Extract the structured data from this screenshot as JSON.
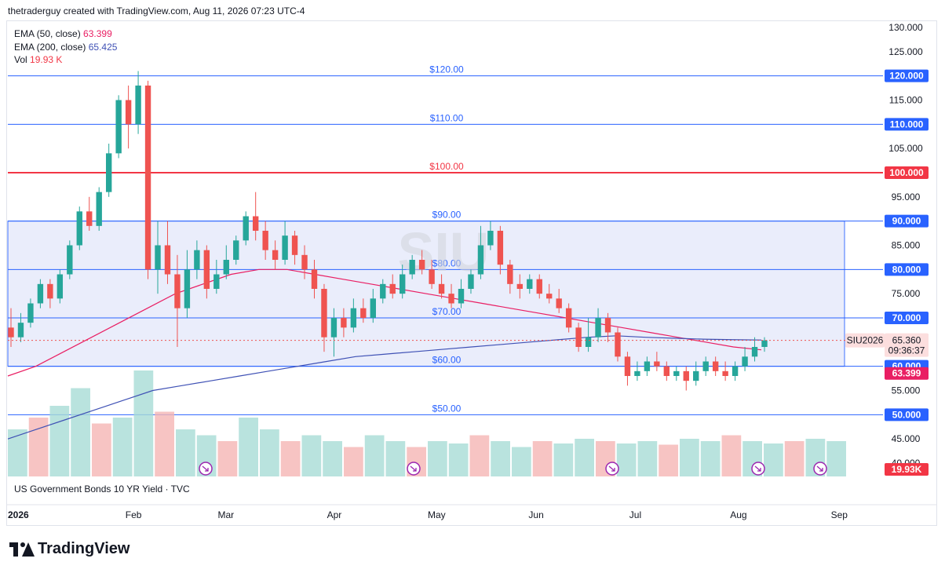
{
  "header": {
    "text": "thetraderguy created with TradingView.com, Aug 11, 2026 07:23 UTC-4"
  },
  "legend": {
    "ema50_label": "EMA (50, close)",
    "ema50_value": "63.399",
    "ema200_label": "EMA (200, close)",
    "ema200_value": "65.425",
    "vol_label": "Vol",
    "vol_value": "19.93 K"
  },
  "symbol_title": "US Government Bonds 10 YR Yield · TVC",
  "watermark": "SIU",
  "logo_text": "TradingView",
  "colors": {
    "up": "#26a69a",
    "down": "#ef5350",
    "ema50": "#e91e63",
    "ema200": "#3f51b5",
    "level_line": "#2962ff",
    "red_level": "#f23645",
    "zone_fill": "#e8ecfb"
  },
  "chart_data": {
    "type": "candlestick",
    "ylim": [
      40,
      130
    ],
    "y_ticks": [
      "130.000",
      "125.000",
      "115.000",
      "105.000",
      "95.000",
      "85.000",
      "75.000",
      "55.000",
      "45.000",
      "40.000"
    ],
    "x_labels": [
      "2026",
      "Feb",
      "Mar",
      "Apr",
      "May",
      "Jun",
      "Jul",
      "Aug",
      "Sep"
    ],
    "horizontal_levels": [
      {
        "value": 120,
        "chart_label": "$120.00",
        "axis_label": "120.000",
        "color": "#2962ff"
      },
      {
        "value": 110,
        "chart_label": "$110.00",
        "axis_label": "110.000",
        "color": "#2962ff"
      },
      {
        "value": 100,
        "chart_label": "$100.00",
        "axis_label": "100.000",
        "color": "#f23645"
      },
      {
        "value": 90,
        "chart_label": "$90.00",
        "axis_label": "90.000",
        "color": "#2962ff"
      },
      {
        "value": 80,
        "chart_label": "$80.00",
        "axis_label": "80.000",
        "color": "#2962ff"
      },
      {
        "value": 70,
        "chart_label": "$70.00",
        "axis_label": "70.000",
        "color": "#2962ff"
      },
      {
        "value": 60,
        "chart_label": "$60.00",
        "axis_label": "60.000",
        "color": "#2962ff"
      },
      {
        "value": 50,
        "chart_label": "$50.00",
        "axis_label": "50.000",
        "color": "#2962ff"
      }
    ],
    "zone": {
      "from": 60,
      "to": 90
    },
    "price_tags": {
      "ema200": {
        "value": 65.425,
        "label": "65.425"
      },
      "ema50": {
        "value": 63.399,
        "label": "63.399"
      },
      "last": {
        "value": 65.36,
        "symbol": "SIU2026",
        "price": "65.360",
        "countdown": "09:36:37"
      },
      "volume": {
        "label": "19.93K"
      }
    },
    "candles": [
      [
        68,
        66,
        72,
        64
      ],
      [
        66,
        69,
        71,
        65
      ],
      [
        69,
        73,
        74,
        68
      ],
      [
        73,
        77,
        78,
        72
      ],
      [
        77,
        74,
        78,
        72
      ],
      [
        74,
        79,
        80,
        73
      ],
      [
        79,
        85,
        86,
        78
      ],
      [
        85,
        92,
        93,
        84
      ],
      [
        92,
        89,
        95,
        88
      ],
      [
        89,
        96,
        97,
        88
      ],
      [
        96,
        104,
        106,
        95
      ],
      [
        104,
        115,
        116,
        103
      ],
      [
        115,
        110,
        118,
        105
      ],
      [
        110,
        118,
        121,
        108
      ],
      [
        118,
        80,
        119,
        78
      ],
      [
        80,
        85,
        90,
        75
      ],
      [
        85,
        79,
        90,
        77
      ],
      [
        79,
        72,
        83,
        64
      ],
      [
        72,
        80,
        84,
        70
      ],
      [
        80,
        84,
        86,
        78
      ],
      [
        84,
        76,
        85,
        74
      ],
      [
        76,
        79,
        82,
        75
      ],
      [
        79,
        82,
        85,
        78
      ],
      [
        82,
        86,
        87,
        81
      ],
      [
        86,
        91,
        92,
        85
      ],
      [
        91,
        88,
        96,
        86
      ],
      [
        88,
        84,
        90,
        82
      ],
      [
        84,
        82,
        86,
        80
      ],
      [
        82,
        87,
        90,
        81
      ],
      [
        87,
        83,
        88,
        81
      ],
      [
        83,
        80,
        85,
        78
      ],
      [
        80,
        76,
        82,
        74
      ],
      [
        76,
        66,
        77,
        63
      ],
      [
        66,
        70,
        72,
        62
      ],
      [
        70,
        68,
        72,
        66
      ],
      [
        68,
        72,
        74,
        67
      ],
      [
        72,
        70,
        74,
        69
      ],
      [
        70,
        74,
        76,
        69
      ],
      [
        74,
        77,
        78,
        73
      ],
      [
        77,
        75,
        79,
        74
      ],
      [
        75,
        79,
        81,
        74
      ],
      [
        79,
        82,
        83,
        78
      ],
      [
        82,
        80,
        84,
        79
      ],
      [
        80,
        77,
        82,
        76
      ],
      [
        77,
        75,
        79,
        74
      ],
      [
        75,
        73,
        77,
        72
      ],
      [
        73,
        76,
        78,
        72
      ],
      [
        76,
        79,
        80,
        75
      ],
      [
        79,
        85,
        89,
        78
      ],
      [
        85,
        88,
        90,
        84
      ],
      [
        88,
        81,
        89,
        79
      ],
      [
        81,
        77,
        82,
        75
      ],
      [
        77,
        76,
        79,
        74
      ],
      [
        76,
        78,
        79,
        75
      ],
      [
        78,
        75,
        79,
        74
      ],
      [
        75,
        74,
        77,
        73
      ],
      [
        74,
        72,
        76,
        71
      ],
      [
        72,
        68,
        73,
        67
      ],
      [
        68,
        64,
        69,
        63
      ],
      [
        64,
        66,
        70,
        63
      ],
      [
        66,
        70,
        72,
        65
      ],
      [
        70,
        67,
        71,
        65
      ],
      [
        67,
        62,
        68,
        61
      ],
      [
        62,
        58,
        63,
        56
      ],
      [
        58,
        59,
        61,
        57
      ],
      [
        59,
        61,
        62,
        58
      ],
      [
        61,
        60,
        63,
        59
      ],
      [
        60,
        58,
        61,
        57
      ],
      [
        58,
        59,
        60,
        57
      ],
      [
        59,
        57,
        60,
        55
      ],
      [
        57,
        59,
        61,
        56
      ],
      [
        59,
        61,
        62,
        58
      ],
      [
        61,
        59,
        62,
        58
      ],
      [
        59,
        58,
        61,
        57
      ],
      [
        58,
        60,
        61,
        57
      ],
      [
        60,
        62,
        64,
        59
      ],
      [
        62,
        64,
        66,
        61
      ],
      [
        64,
        65.36,
        66,
        63
      ]
    ],
    "ema50": [
      58,
      60,
      63,
      66,
      69,
      72,
      75,
      77,
      79,
      80,
      80,
      79,
      78,
      77,
      76,
      75,
      74,
      73,
      72,
      71,
      70,
      69,
      68,
      67,
      66,
      65,
      64,
      63.399
    ],
    "ema200": [
      45,
      47,
      49,
      51,
      53,
      55,
      56,
      57,
      58,
      59,
      60,
      61,
      62,
      62.5,
      63,
      63.5,
      64,
      64.5,
      65,
      65.5,
      66,
      66.3,
      66,
      65.8,
      65.6,
      65.5,
      65.425
    ],
    "volume_levels": [
      0.4,
      0.5,
      0.6,
      0.75,
      0.45,
      0.5,
      0.9,
      0.55,
      0.4,
      0.35,
      0.3,
      0.5,
      0.4,
      0.3,
      0.35,
      0.3,
      0.25,
      0.35,
      0.3,
      0.25,
      0.3,
      0.28,
      0.35,
      0.3,
      0.25,
      0.3,
      0.28,
      0.32,
      0.3,
      0.28,
      0.3,
      0.27,
      0.32,
      0.3,
      0.35,
      0.3,
      0.28,
      0.3,
      0.32,
      0.3
    ]
  }
}
